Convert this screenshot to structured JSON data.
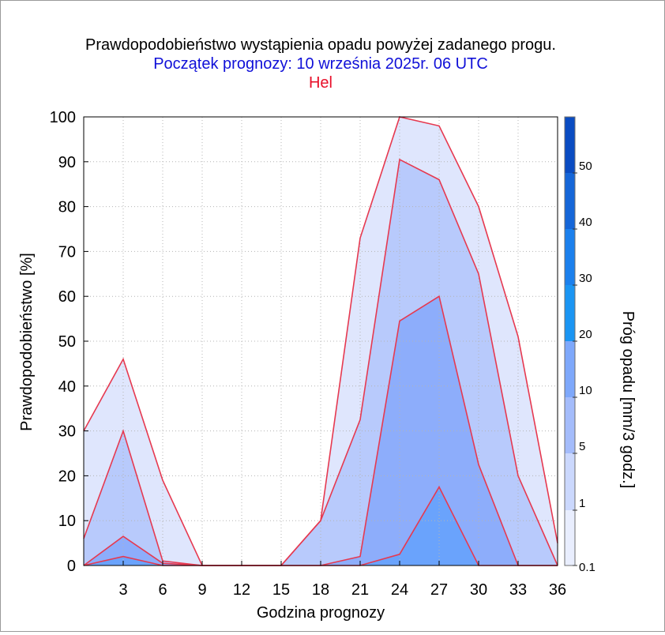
{
  "titles": {
    "main": "Prawdopodobieństwo wystąpienia opadu powyżej zadanego progu.",
    "forecast_start": "Początek prognozy: 10 września 2025r. 06 UTC",
    "location": "Hel"
  },
  "colors": {
    "main_title": "#000000",
    "forecast_start": "#1010d8",
    "location": "#e8102a",
    "outline": "#e63950",
    "grid": "#b4b4b4"
  },
  "chart_data": {
    "type": "area",
    "xlabel": "Godzina prognozy",
    "ylabel": "Prawdopodobieństwo [%]",
    "xlim": [
      0,
      36
    ],
    "ylim": [
      0,
      100
    ],
    "x_ticks": [
      3,
      6,
      9,
      12,
      15,
      18,
      21,
      24,
      27,
      30,
      33,
      36
    ],
    "y_ticks": [
      0,
      10,
      20,
      30,
      40,
      50,
      60,
      70,
      80,
      90,
      100
    ],
    "grid": "dotted",
    "x": [
      0,
      3,
      6,
      9,
      12,
      15,
      18,
      21,
      24,
      27,
      30,
      33,
      36
    ],
    "series": [
      {
        "threshold": 0.1,
        "color": "#dfe6fd",
        "values": [
          30,
          46,
          19,
          0,
          0,
          0,
          10,
          73,
          100,
          98,
          80,
          51,
          5
        ]
      },
      {
        "threshold": 1,
        "color": "#b8cafc",
        "values": [
          6,
          30,
          1,
          0,
          0,
          0,
          10,
          32.5,
          90.5,
          86,
          65,
          20,
          0
        ]
      },
      {
        "threshold": 5,
        "color": "#8dadfb",
        "values": [
          0,
          6.5,
          0.5,
          0,
          0,
          0,
          0,
          2,
          54.5,
          60,
          22.5,
          0,
          0
        ]
      },
      {
        "threshold": 10,
        "color": "#6aa3fc",
        "values": [
          0,
          2,
          0,
          0,
          0,
          0,
          0,
          0,
          2.5,
          17.5,
          0,
          0,
          0
        ]
      }
    ],
    "colorbar": {
      "label": "Próg opadu [mm/3 godz.]",
      "tick_labels": [
        "0.1",
        "1",
        "5",
        "10",
        "20",
        "30",
        "40",
        "50"
      ],
      "bands": [
        {
          "from": "0.1",
          "to": "1",
          "color": "#e9eefe"
        },
        {
          "from": "1",
          "to": "5",
          "color": "#cbd8fd"
        },
        {
          "from": "5",
          "to": "10",
          "color": "#a4bcfb"
        },
        {
          "from": "10",
          "to": "20",
          "color": "#7ea8fb"
        },
        {
          "from": "20",
          "to": "30",
          "color": "#1a95f3"
        },
        {
          "from": "30",
          "to": "40",
          "color": "#1b80ed"
        },
        {
          "from": "40",
          "to": "50",
          "color": "#1566d8"
        },
        {
          "from": "50",
          "to": "",
          "color": "#0a4cc2"
        }
      ]
    }
  }
}
